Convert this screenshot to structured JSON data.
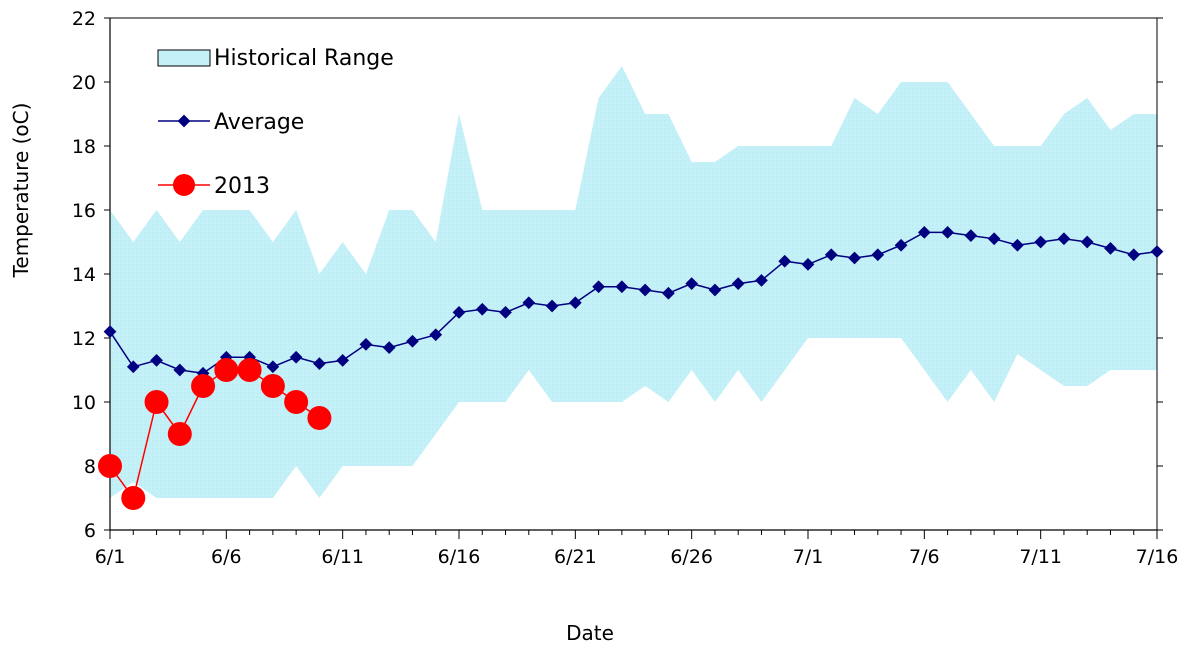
{
  "chart_data": {
    "type": "line",
    "title": "",
    "xlabel": "Date",
    "ylabel": "Temperature (oC)",
    "xlim": [
      "6/1",
      "7/16"
    ],
    "ylim": [
      6,
      22
    ],
    "y_ticks": [
      6,
      8,
      10,
      12,
      14,
      16,
      18,
      20,
      22
    ],
    "x_ticks": [
      "6/1",
      "6/6",
      "6/11",
      "6/16",
      "6/21",
      "6/26",
      "7/1",
      "7/6",
      "7/11",
      "7/16"
    ],
    "grid": false,
    "legend_position": "top-left",
    "series": [
      {
        "name": "Historical Range",
        "kind": "range",
        "color": "#c4f0f7",
        "dates": [
          "6/1",
          "6/2",
          "6/3",
          "6/4",
          "6/5",
          "6/6",
          "6/7",
          "6/8",
          "6/9",
          "6/10",
          "6/11",
          "6/12",
          "6/13",
          "6/14",
          "6/15",
          "6/16",
          "6/17",
          "6/18",
          "6/19",
          "6/20",
          "6/21",
          "6/22",
          "6/23",
          "6/24",
          "6/25",
          "6/26",
          "6/27",
          "6/28",
          "6/29",
          "6/30",
          "7/1",
          "7/2",
          "7/3",
          "7/4",
          "7/5",
          "7/6",
          "7/7",
          "7/8",
          "7/9",
          "7/10",
          "7/11",
          "7/12",
          "7/13",
          "7/14",
          "7/15",
          "7/16"
        ],
        "upper": [
          16,
          15,
          16,
          15,
          16,
          16,
          16,
          15,
          16,
          14,
          15,
          14,
          16,
          16,
          15,
          19,
          16,
          16,
          16,
          16,
          16,
          19.5,
          20.5,
          19,
          19,
          17.5,
          17.5,
          18,
          18,
          18,
          18,
          18,
          19.5,
          19,
          20,
          20,
          20,
          19,
          18,
          18,
          18,
          19,
          19.5,
          18.5,
          19,
          19
        ],
        "lower": [
          7,
          7.5,
          7,
          7,
          7,
          7,
          7,
          7,
          8,
          7,
          8,
          8,
          8,
          8,
          9,
          10,
          10,
          10,
          11,
          10,
          10,
          10,
          10,
          10.5,
          10,
          11,
          10,
          11,
          10,
          11,
          12,
          12,
          12,
          12,
          12,
          11,
          10,
          11,
          10,
          11.5,
          11,
          10.5,
          10.5,
          11,
          11,
          11
        ]
      },
      {
        "name": "Average",
        "kind": "line",
        "color": "#000080",
        "dates": [
          "6/1",
          "6/2",
          "6/3",
          "6/4",
          "6/5",
          "6/6",
          "6/7",
          "6/8",
          "6/9",
          "6/10",
          "6/11",
          "6/12",
          "6/13",
          "6/14",
          "6/15",
          "6/16",
          "6/17",
          "6/18",
          "6/19",
          "6/20",
          "6/21",
          "6/22",
          "6/23",
          "6/24",
          "6/25",
          "6/26",
          "6/27",
          "6/28",
          "6/29",
          "6/30",
          "7/1",
          "7/2",
          "7/3",
          "7/4",
          "7/5",
          "7/6",
          "7/7",
          "7/8",
          "7/9",
          "7/10",
          "7/11",
          "7/12",
          "7/13",
          "7/14",
          "7/15",
          "7/16"
        ],
        "values": [
          12.2,
          11.1,
          11.3,
          11.0,
          10.9,
          11.4,
          11.4,
          11.1,
          11.4,
          11.2,
          11.3,
          11.8,
          11.7,
          11.9,
          12.1,
          12.8,
          12.9,
          12.8,
          13.1,
          13.0,
          13.1,
          13.6,
          13.6,
          13.5,
          13.4,
          13.7,
          13.5,
          13.7,
          13.8,
          14.4,
          14.3,
          14.6,
          14.5,
          14.6,
          14.9,
          15.3,
          15.3,
          15.2,
          15.1,
          14.9,
          15.0,
          15.1,
          15.0,
          14.8,
          14.6,
          14.7
        ]
      },
      {
        "name": "2013",
        "kind": "line",
        "color": "#ff0000",
        "dates": [
          "6/1",
          "6/2",
          "6/3",
          "6/4",
          "6/5",
          "6/6",
          "6/7",
          "6/8",
          "6/9",
          "6/10"
        ],
        "values": [
          8.0,
          7.0,
          10.0,
          9.0,
          10.5,
          11.0,
          11.0,
          10.5,
          10.0,
          9.5
        ]
      }
    ]
  }
}
